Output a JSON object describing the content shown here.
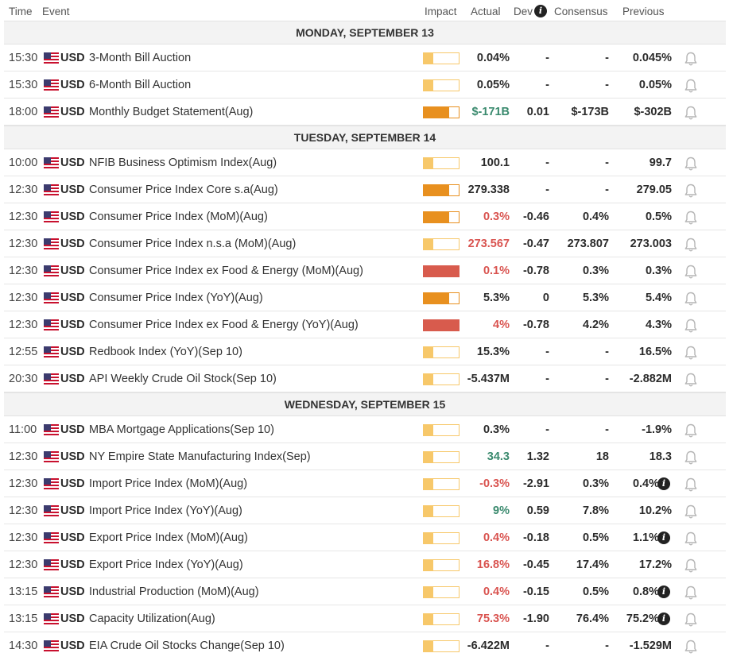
{
  "header": {
    "time": "Time",
    "event": "Event",
    "impact": "Impact",
    "actual": "Actual",
    "dev": "Dev",
    "consensus": "Consensus",
    "previous": "Previous"
  },
  "colors": {
    "impact_low": "#f7c86a",
    "impact_medium": "#e8901f",
    "impact_high": "#d85b4d",
    "positive": "#3a8a6e",
    "negative": "#d9534f"
  },
  "days": [
    {
      "label": "MONDAY, SEPTEMBER 13",
      "events": [
        {
          "time": "15:30",
          "currency": "USD",
          "name": "3-Month Bill Auction",
          "impact": "low",
          "actual": "0.04%",
          "actual_tone": "",
          "dev": "-",
          "consensus": "-",
          "previous": "0.045%",
          "prev_info": false
        },
        {
          "time": "15:30",
          "currency": "USD",
          "name": "6-Month Bill Auction",
          "impact": "low",
          "actual": "0.05%",
          "actual_tone": "",
          "dev": "-",
          "consensus": "-",
          "previous": "0.05%",
          "prev_info": false
        },
        {
          "time": "18:00",
          "currency": "USD",
          "name": "Monthly Budget Statement(Aug)",
          "impact": "medium",
          "actual": "$-171B",
          "actual_tone": "pos",
          "dev": "0.01",
          "consensus": "$-173B",
          "previous": "$-302B",
          "prev_info": false
        }
      ]
    },
    {
      "label": "TUESDAY, SEPTEMBER 14",
      "events": [
        {
          "time": "10:00",
          "currency": "USD",
          "name": "NFIB Business Optimism Index(Aug)",
          "impact": "low",
          "actual": "100.1",
          "actual_tone": "",
          "dev": "-",
          "consensus": "-",
          "previous": "99.7",
          "prev_info": false
        },
        {
          "time": "12:30",
          "currency": "USD",
          "name": "Consumer Price Index Core s.a(Aug)",
          "impact": "medium",
          "actual": "279.338",
          "actual_tone": "",
          "dev": "-",
          "consensus": "-",
          "previous": "279.05",
          "prev_info": false
        },
        {
          "time": "12:30",
          "currency": "USD",
          "name": "Consumer Price Index (MoM)(Aug)",
          "impact": "medium",
          "actual": "0.3%",
          "actual_tone": "neg",
          "dev": "-0.46",
          "consensus": "0.4%",
          "previous": "0.5%",
          "prev_info": false
        },
        {
          "time": "12:30",
          "currency": "USD",
          "name": "Consumer Price Index n.s.a (MoM)(Aug)",
          "impact": "low",
          "actual": "273.567",
          "actual_tone": "neg",
          "dev": "-0.47",
          "consensus": "273.807",
          "previous": "273.003",
          "prev_info": false
        },
        {
          "time": "12:30",
          "currency": "USD",
          "name": "Consumer Price Index ex Food & Energy (MoM)(Aug)",
          "impact": "high",
          "actual": "0.1%",
          "actual_tone": "neg",
          "dev": "-0.78",
          "consensus": "0.3%",
          "previous": "0.3%",
          "prev_info": false
        },
        {
          "time": "12:30",
          "currency": "USD",
          "name": "Consumer Price Index (YoY)(Aug)",
          "impact": "medium",
          "actual": "5.3%",
          "actual_tone": "",
          "dev": "0",
          "consensus": "5.3%",
          "previous": "5.4%",
          "prev_info": false
        },
        {
          "time": "12:30",
          "currency": "USD",
          "name": "Consumer Price Index ex Food & Energy (YoY)(Aug)",
          "impact": "high",
          "actual": "4%",
          "actual_tone": "neg",
          "dev": "-0.78",
          "consensus": "4.2%",
          "previous": "4.3%",
          "prev_info": false
        },
        {
          "time": "12:55",
          "currency": "USD",
          "name": "Redbook Index (YoY)(Sep 10)",
          "impact": "low",
          "actual": "15.3%",
          "actual_tone": "",
          "dev": "-",
          "consensus": "-",
          "previous": "16.5%",
          "prev_info": false
        },
        {
          "time": "20:30",
          "currency": "USD",
          "name": "API Weekly Crude Oil Stock(Sep 10)",
          "impact": "low",
          "actual": "-5.437M",
          "actual_tone": "",
          "dev": "-",
          "consensus": "-",
          "previous": "-2.882M",
          "prev_info": false
        }
      ]
    },
    {
      "label": "WEDNESDAY, SEPTEMBER 15",
      "events": [
        {
          "time": "11:00",
          "currency": "USD",
          "name": "MBA Mortgage Applications(Sep 10)",
          "impact": "low",
          "actual": "0.3%",
          "actual_tone": "",
          "dev": "-",
          "consensus": "-",
          "previous": "-1.9%",
          "prev_info": false
        },
        {
          "time": "12:30",
          "currency": "USD",
          "name": "NY Empire State Manufacturing Index(Sep)",
          "impact": "low",
          "actual": "34.3",
          "actual_tone": "pos",
          "dev": "1.32",
          "consensus": "18",
          "previous": "18.3",
          "prev_info": false
        },
        {
          "time": "12:30",
          "currency": "USD",
          "name": "Import Price Index (MoM)(Aug)",
          "impact": "low",
          "actual": "-0.3%",
          "actual_tone": "neg",
          "dev": "-2.91",
          "consensus": "0.3%",
          "previous": "0.4%",
          "prev_info": true
        },
        {
          "time": "12:30",
          "currency": "USD",
          "name": "Import Price Index (YoY)(Aug)",
          "impact": "low",
          "actual": "9%",
          "actual_tone": "pos",
          "dev": "0.59",
          "consensus": "7.8%",
          "previous": "10.2%",
          "prev_info": false
        },
        {
          "time": "12:30",
          "currency": "USD",
          "name": "Export Price Index (MoM)(Aug)",
          "impact": "low",
          "actual": "0.4%",
          "actual_tone": "neg",
          "dev": "-0.18",
          "consensus": "0.5%",
          "previous": "1.1%",
          "prev_info": true
        },
        {
          "time": "12:30",
          "currency": "USD",
          "name": "Export Price Index (YoY)(Aug)",
          "impact": "low",
          "actual": "16.8%",
          "actual_tone": "neg",
          "dev": "-0.45",
          "consensus": "17.4%",
          "previous": "17.2%",
          "prev_info": false
        },
        {
          "time": "13:15",
          "currency": "USD",
          "name": "Industrial Production (MoM)(Aug)",
          "impact": "low",
          "actual": "0.4%",
          "actual_tone": "neg",
          "dev": "-0.15",
          "consensus": "0.5%",
          "previous": "0.8%",
          "prev_info": true
        },
        {
          "time": "13:15",
          "currency": "USD",
          "name": "Capacity Utilization(Aug)",
          "impact": "low",
          "actual": "75.3%",
          "actual_tone": "neg",
          "dev": "-1.90",
          "consensus": "76.4%",
          "previous": "75.2%",
          "prev_info": true
        },
        {
          "time": "14:30",
          "currency": "USD",
          "name": "EIA Crude Oil Stocks Change(Sep 10)",
          "impact": "low",
          "actual": "-6.422M",
          "actual_tone": "",
          "dev": "-",
          "consensus": "-",
          "previous": "-1.529M",
          "prev_info": false
        }
      ]
    }
  ]
}
